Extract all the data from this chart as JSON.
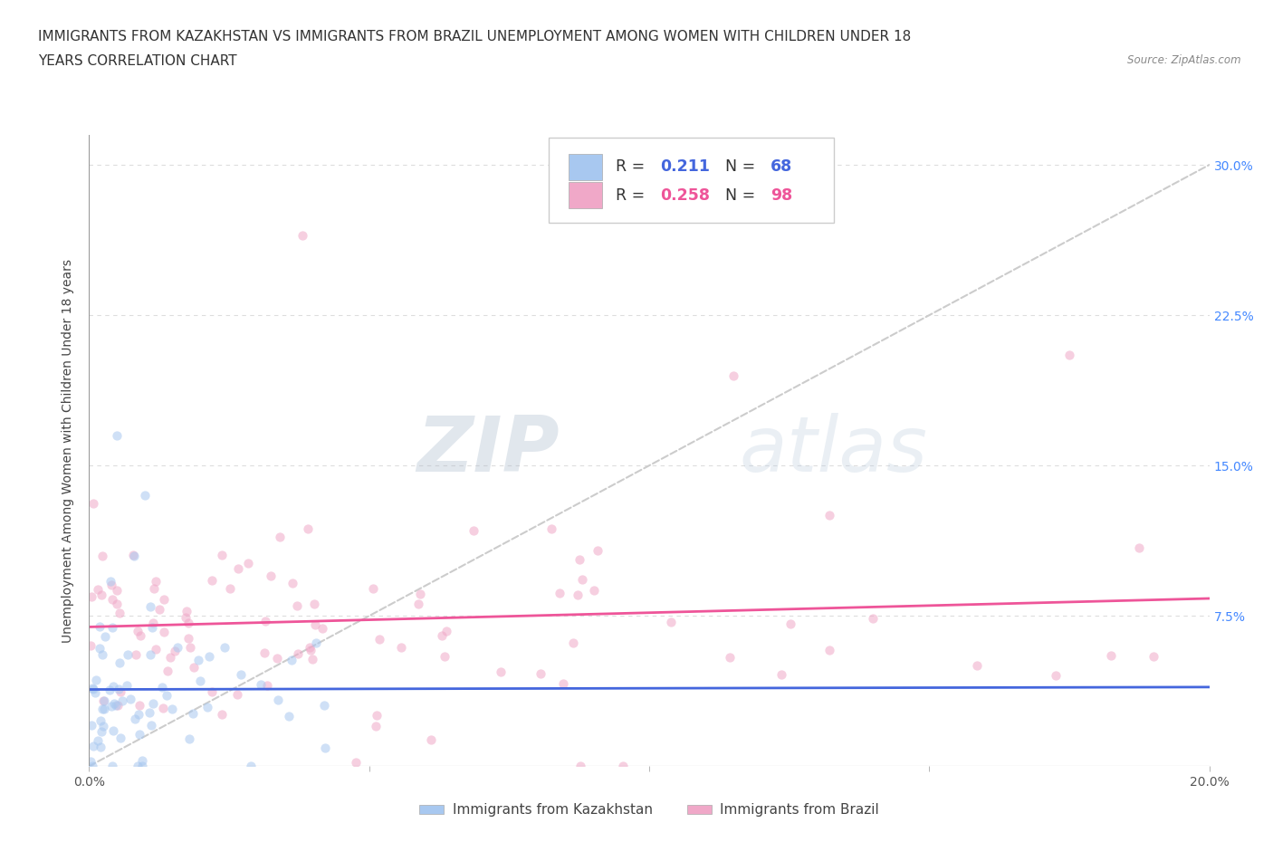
{
  "title_line1": "IMMIGRANTS FROM KAZAKHSTAN VS IMMIGRANTS FROM BRAZIL UNEMPLOYMENT AMONG WOMEN WITH CHILDREN UNDER 18",
  "title_line2": "YEARS CORRELATION CHART",
  "source": "Source: ZipAtlas.com",
  "ylabel": "Unemployment Among Women with Children Under 18 years",
  "xlim": [
    0.0,
    0.2
  ],
  "ylim": [
    0.0,
    0.315
  ],
  "r_kaz": 0.211,
  "n_kaz": 68,
  "r_bra": 0.258,
  "n_bra": 98,
  "color_kaz": "#a8c8f0",
  "color_bra": "#f0a8c8",
  "line_color_kaz": "#4466dd",
  "line_color_bra": "#ee5599",
  "diagonal_color": "#cccccc",
  "legend_label_kaz": "Immigrants from Kazakhstan",
  "legend_label_bra": "Immigrants from Brazil",
  "background_color": "#ffffff",
  "grid_color": "#dddddd",
  "title_fontsize": 11,
  "axis_label_fontsize": 10,
  "tick_fontsize": 10,
  "scatter_alpha": 0.55,
  "scatter_size": 55,
  "scatter_linewidth": 1.2,
  "watermark_zip_color": "#aabbcc",
  "watermark_atlas_color": "#bbccdd"
}
